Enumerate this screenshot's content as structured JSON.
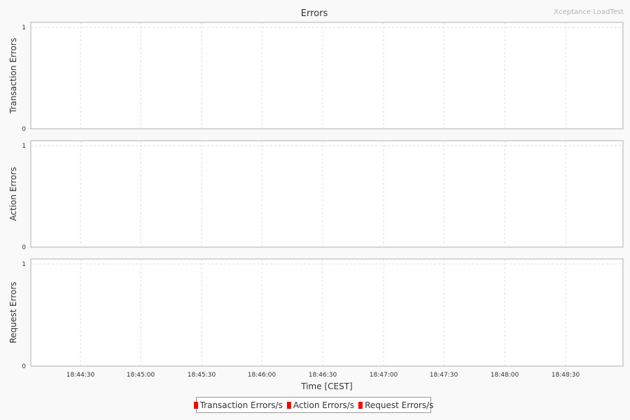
{
  "chart_data": {
    "type": "line",
    "title": "Errors",
    "watermark": "Xceptance LoadTest",
    "xlabel": "Time [CEST]",
    "x_ticks": [
      "18:44:30",
      "18:45:00",
      "18:45:30",
      "18:46:00",
      "18:46:30",
      "18:47:00",
      "18:47:30",
      "18:48:00",
      "18:48:30"
    ],
    "panels": [
      {
        "ylabel": "Transaction Errors",
        "ylim": [
          0,
          1
        ],
        "y_ticks": [
          "0",
          "1"
        ],
        "series": "Transaction Errors/s",
        "values": []
      },
      {
        "ylabel": "Action Errors",
        "ylim": [
          0,
          1
        ],
        "y_ticks": [
          "0",
          "1"
        ],
        "series": "Action Errors/s",
        "values": []
      },
      {
        "ylabel": "Request Errors",
        "ylim": [
          0,
          1
        ],
        "y_ticks": [
          "0",
          "1"
        ],
        "series": "Request Errors/s",
        "values": []
      }
    ],
    "legend": {
      "placement": "bottom",
      "items": [
        {
          "label": "Transaction Errors/s",
          "color": "#ff0000"
        },
        {
          "label": "Action Errors/s",
          "color": "#ff0000"
        },
        {
          "label": "Request Errors/s",
          "color": "#ff0000"
        }
      ]
    },
    "grid": true
  }
}
